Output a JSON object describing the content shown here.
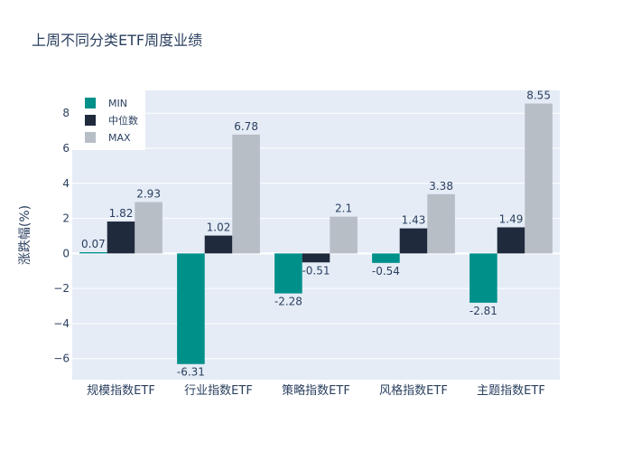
{
  "chart_data": {
    "type": "bar",
    "title": "上周不同分类ETF周度业绩",
    "xlabel": "",
    "ylabel": "涨跌幅(%)",
    "ylim": [
      -7.2,
      9.3
    ],
    "yticks": [
      -6,
      -4,
      -2,
      0,
      2,
      4,
      6,
      8
    ],
    "categories": [
      "规模指数ETF",
      "行业指数ETF",
      "策略指数ETF",
      "风格指数ETF",
      "主题指数ETF"
    ],
    "series": [
      {
        "name": "MIN",
        "color": "#00908a",
        "values": [
          0.07,
          -6.31,
          -2.28,
          -0.54,
          -2.81
        ]
      },
      {
        "name": "中位数",
        "color": "#1f2a3d",
        "values": [
          1.82,
          1.02,
          -0.51,
          1.43,
          1.49
        ]
      },
      {
        "name": "MAX",
        "color": "#b8bec6",
        "values": [
          2.93,
          6.78,
          2.1,
          3.38,
          8.55
        ]
      }
    ],
    "legend_position": "top-left",
    "grid": true
  }
}
